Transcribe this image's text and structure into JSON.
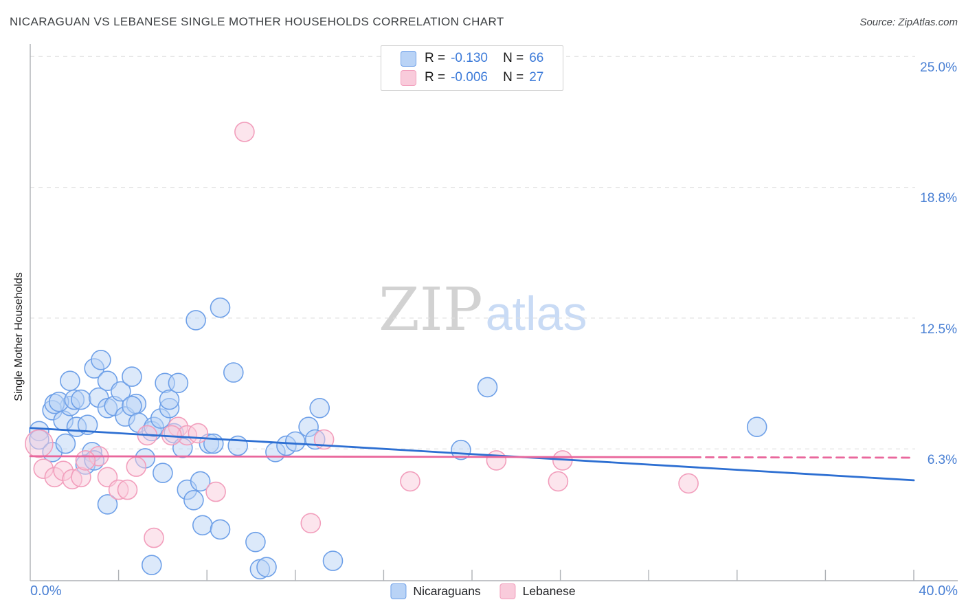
{
  "title": "NICARAGUAN VS LEBANESE SINGLE MOTHER HOUSEHOLDS CORRELATION CHART",
  "source": "Source: ZipAtlas.com",
  "watermark": {
    "part1": "ZIP",
    "part2": "atlas"
  },
  "y_axis": {
    "label": "Single Mother Households",
    "tick_labels": [
      "25.0%",
      "18.8%",
      "12.5%",
      "6.3%"
    ],
    "tick_values": [
      25,
      18.75,
      12.5,
      6.25
    ]
  },
  "x_axis": {
    "min_label": "0.0%",
    "max_label": "40.0%",
    "tick_values": [
      4,
      8,
      12,
      16,
      20,
      24,
      28,
      32,
      36,
      40
    ]
  },
  "legend_box": {
    "rows": [
      {
        "series": "Nicaraguans",
        "r_label": "R =",
        "r_value": "-0.130",
        "n_label": "N =",
        "n_value": "66"
      },
      {
        "series": "Lebanese",
        "r_label": "R =",
        "r_value": "-0.006",
        "n_label": "N =",
        "n_value": "27"
      }
    ]
  },
  "bottom_legend": {
    "items": [
      {
        "label": "Nicaraguans"
      },
      {
        "label": "Lebanese"
      }
    ]
  },
  "colors": {
    "accent_text": "#4a80d4",
    "title_text": "#3d4043",
    "grid": "#e0e0e0",
    "axis": "#aeb1b5",
    "blue_fill": "#b9d3f6",
    "blue_stroke": "#6ea0e8",
    "blue_trend": "#2d6fd2",
    "pink_fill": "#f9cbdb",
    "pink_stroke": "#f29ebc",
    "pink_trend": "#e9679c",
    "watermark_serif": "#d2d2d2",
    "watermark_sans": "#c9dbf5"
  },
  "chart_data": {
    "type": "scatter",
    "title": "NICARAGUAN VS LEBANESE SINGLE MOTHER HOUSEHOLDS CORRELATION CHART",
    "xlabel": "",
    "ylabel": "Single Mother Households",
    "x_units": "percent",
    "y_units": "percent",
    "xlim": [
      0,
      40
    ],
    "ylim": [
      0,
      25.6
    ],
    "grid": "horizontal-dashed",
    "gridlines_y": [
      6.25,
      12.5,
      18.75,
      25
    ],
    "legend_position": "bottom-center",
    "series": [
      {
        "name": "Nicaraguans",
        "R": -0.13,
        "N": 66,
        "marker_radius": 14,
        "points": [
          [
            0.4,
            7.1
          ],
          [
            0.4,
            6.7
          ],
          [
            1.0,
            8.1
          ],
          [
            1.5,
            7.6
          ],
          [
            1.0,
            6.1
          ],
          [
            1.6,
            6.5
          ],
          [
            1.8,
            8.3
          ],
          [
            2.1,
            7.3
          ],
          [
            1.1,
            8.4
          ],
          [
            1.3,
            8.5
          ],
          [
            1.8,
            9.5
          ],
          [
            2.0,
            8.6
          ],
          [
            2.3,
            8.6
          ],
          [
            2.6,
            7.4
          ],
          [
            2.8,
            6.1
          ],
          [
            2.5,
            5.5
          ],
          [
            2.9,
            10.1
          ],
          [
            3.2,
            10.5
          ],
          [
            3.1,
            8.7
          ],
          [
            3.5,
            8.2
          ],
          [
            3.5,
            9.5
          ],
          [
            3.8,
            8.3
          ],
          [
            3.5,
            3.6
          ],
          [
            4.1,
            9.0
          ],
          [
            4.3,
            7.8
          ],
          [
            4.6,
            9.7
          ],
          [
            4.8,
            8.4
          ],
          [
            4.6,
            8.3
          ],
          [
            4.9,
            7.5
          ],
          [
            5.2,
            5.8
          ],
          [
            5.5,
            7.1
          ],
          [
            5.6,
            7.3
          ],
          [
            5.5,
            0.7
          ],
          [
            5.9,
            7.7
          ],
          [
            6.1,
            9.4
          ],
          [
            6.0,
            5.1
          ],
          [
            6.3,
            8.2
          ],
          [
            6.3,
            8.6
          ],
          [
            6.5,
            7.0
          ],
          [
            6.7,
            9.4
          ],
          [
            6.9,
            6.3
          ],
          [
            7.1,
            4.3
          ],
          [
            7.4,
            3.8
          ],
          [
            7.5,
            12.4
          ],
          [
            7.7,
            4.7
          ],
          [
            7.8,
            2.6
          ],
          [
            8.1,
            6.5
          ],
          [
            8.3,
            6.5
          ],
          [
            8.6,
            13.0
          ],
          [
            8.6,
            2.4
          ],
          [
            9.2,
            9.9
          ],
          [
            9.4,
            6.4
          ],
          [
            10.2,
            1.8
          ],
          [
            10.4,
            0.5
          ],
          [
            10.7,
            0.6
          ],
          [
            11.1,
            6.1
          ],
          [
            11.6,
            6.4
          ],
          [
            12.0,
            6.6
          ],
          [
            12.6,
            7.3
          ],
          [
            12.9,
            6.7
          ],
          [
            13.1,
            8.2
          ],
          [
            13.7,
            0.9
          ],
          [
            19.5,
            6.2
          ],
          [
            20.7,
            9.2
          ],
          [
            32.9,
            7.3
          ],
          [
            2.9,
            5.7
          ]
        ]
      },
      {
        "name": "Lebanese",
        "R": -0.006,
        "N": 27,
        "marker_radius": 14,
        "points": [
          [
            0.4,
            6.5,
            20
          ],
          [
            0.6,
            5.3
          ],
          [
            1.1,
            4.9
          ],
          [
            1.5,
            5.2
          ],
          [
            1.9,
            4.8
          ],
          [
            2.3,
            4.9
          ],
          [
            3.1,
            5.9
          ],
          [
            3.5,
            4.9
          ],
          [
            4.0,
            4.3
          ],
          [
            4.4,
            4.3
          ],
          [
            4.8,
            5.4
          ],
          [
            5.3,
            6.9
          ],
          [
            6.7,
            7.3
          ],
          [
            7.1,
            6.9
          ],
          [
            7.6,
            7.0
          ],
          [
            8.4,
            4.2
          ],
          [
            5.6,
            2.0
          ],
          [
            9.7,
            21.4
          ],
          [
            13.3,
            6.7
          ],
          [
            12.7,
            2.7
          ],
          [
            17.2,
            4.7
          ],
          [
            21.1,
            5.7
          ],
          [
            24.1,
            5.7
          ],
          [
            23.9,
            4.7
          ],
          [
            29.8,
            4.6
          ],
          [
            2.5,
            5.7
          ],
          [
            6.4,
            6.9
          ]
        ]
      }
    ],
    "trend_lines": [
      {
        "series": "Nicaraguans",
        "x1": 0,
        "y1": 7.25,
        "x2": 40,
        "y2": 4.75,
        "style": "solid"
      },
      {
        "series": "Lebanese",
        "x1": 0,
        "y1": 5.9,
        "x2": 30,
        "y2": 5.85,
        "style": "solid"
      },
      {
        "series": "Lebanese",
        "x1": 30,
        "y1": 5.85,
        "x2": 40,
        "y2": 5.83,
        "style": "dashed"
      }
    ]
  }
}
